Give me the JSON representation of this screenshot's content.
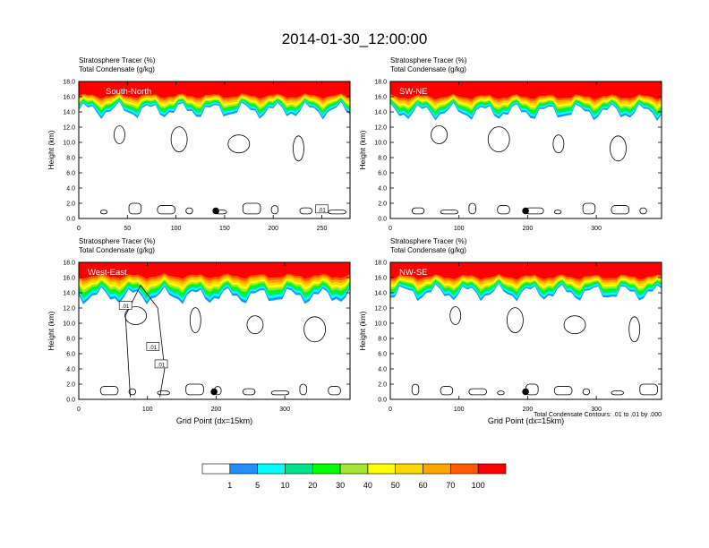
{
  "figure": {
    "title": "2014-01-30_12:00:00",
    "contour_note": "Total Condensate Contours: .01 to .01 by .000"
  },
  "colorbar": {
    "boundaries": [
      "1",
      "5",
      "10",
      "20",
      "30",
      "40",
      "50",
      "60",
      "70",
      "100"
    ],
    "colors": [
      "#ffffff",
      "#1e90ff",
      "#00ffff",
      "#00e38c",
      "#00ff00",
      "#a0e632",
      "#ffff00",
      "#ffd700",
      "#ffa500",
      "#ff5a00",
      "#ff0000"
    ]
  },
  "chart_data": [
    {
      "type": "heatmap",
      "panel_label": "South-North",
      "title_lines": [
        "Stratosphere Tracer   (%)",
        "Total Condensate   (g/kg)"
      ],
      "xlabel": "",
      "ylabel": "Height (km)",
      "xlim": [
        0,
        279
      ],
      "ylim": [
        0,
        18
      ],
      "xticks": [
        0,
        50,
        100,
        150,
        200,
        250
      ],
      "yticks": [
        "0.0",
        "2.0",
        "4.0",
        "6.0",
        "8.0",
        "10.0",
        "12.0",
        "14.0",
        "16.0",
        "18.0"
      ],
      "shading": "Stratosphere Tracer (%)",
      "tracer_100_base_km": 16.1,
      "tracer_1_base_km": 14.2,
      "marker": {
        "x": 141,
        "y": 1.0
      },
      "contour_labels": [
        {
          "text": ".01",
          "x": 250,
          "y": 1.2
        }
      ]
    },
    {
      "type": "heatmap",
      "panel_label": "SW-NE",
      "title_lines": [
        "Stratosphere Tracer   (%)",
        "Total Condensate   (g/kg)"
      ],
      "xlabel": "",
      "ylabel": "Height (km)",
      "xlim": [
        0,
        395
      ],
      "ylim": [
        0,
        18
      ],
      "xticks": [
        0,
        100,
        200,
        300
      ],
      "yticks": [
        "0.0",
        "2.0",
        "4.0",
        "6.0",
        "8.0",
        "10.0",
        "12.0",
        "14.0",
        "16.0",
        "18.0"
      ],
      "shading": "Stratosphere Tracer (%)",
      "tracer_100_base_km": 16.0,
      "tracer_1_base_km": 14.0,
      "marker": {
        "x": 197,
        "y": 1.0
      },
      "contour_labels": []
    },
    {
      "type": "heatmap",
      "panel_label": "West-East",
      "title_lines": [
        "Stratosphere Tracer   (%)",
        "Total Condensate   (g/kg)"
      ],
      "xlabel": "Grid Point (dx=15km)",
      "ylabel": "Height (km)",
      "xlim": [
        0,
        395
      ],
      "ylim": [
        0,
        18
      ],
      "xticks": [
        0,
        100,
        200,
        300
      ],
      "yticks": [
        "0.0",
        "2.0",
        "4.0",
        "6.0",
        "8.0",
        "10.0",
        "12.0",
        "14.0",
        "16.0",
        "18.0"
      ],
      "shading": "Stratosphere Tracer (%)",
      "tracer_100_base_km": 16.2,
      "tracer_1_base_km": 13.6,
      "marker": {
        "x": 197,
        "y": 1.0
      },
      "contour_labels": [
        {
          "text": ".01",
          "x": 68,
          "y": 12.3
        },
        {
          "text": ".01",
          "x": 108,
          "y": 6.9
        },
        {
          "text": ".01",
          "x": 120,
          "y": 4.6
        }
      ]
    },
    {
      "type": "heatmap",
      "panel_label": "NW-SE",
      "title_lines": [
        "Stratosphere Tracer   (%)",
        "Total Condensate   (g/kg)"
      ],
      "xlabel": "Grid Point (dx=15km)",
      "ylabel": "Height (km)",
      "xlim": [
        0,
        395
      ],
      "ylim": [
        0,
        18
      ],
      "xticks": [
        0,
        100,
        200,
        300
      ],
      "yticks": [
        "0.0",
        "2.0",
        "4.0",
        "6.0",
        "8.0",
        "10.0",
        "12.0",
        "14.0",
        "16.0",
        "18.0"
      ],
      "shading": "Stratosphere Tracer (%)",
      "tracer_100_base_km": 16.1,
      "tracer_1_base_km": 14.0,
      "marker": {
        "x": 197,
        "y": 1.0
      },
      "contour_labels": []
    }
  ]
}
